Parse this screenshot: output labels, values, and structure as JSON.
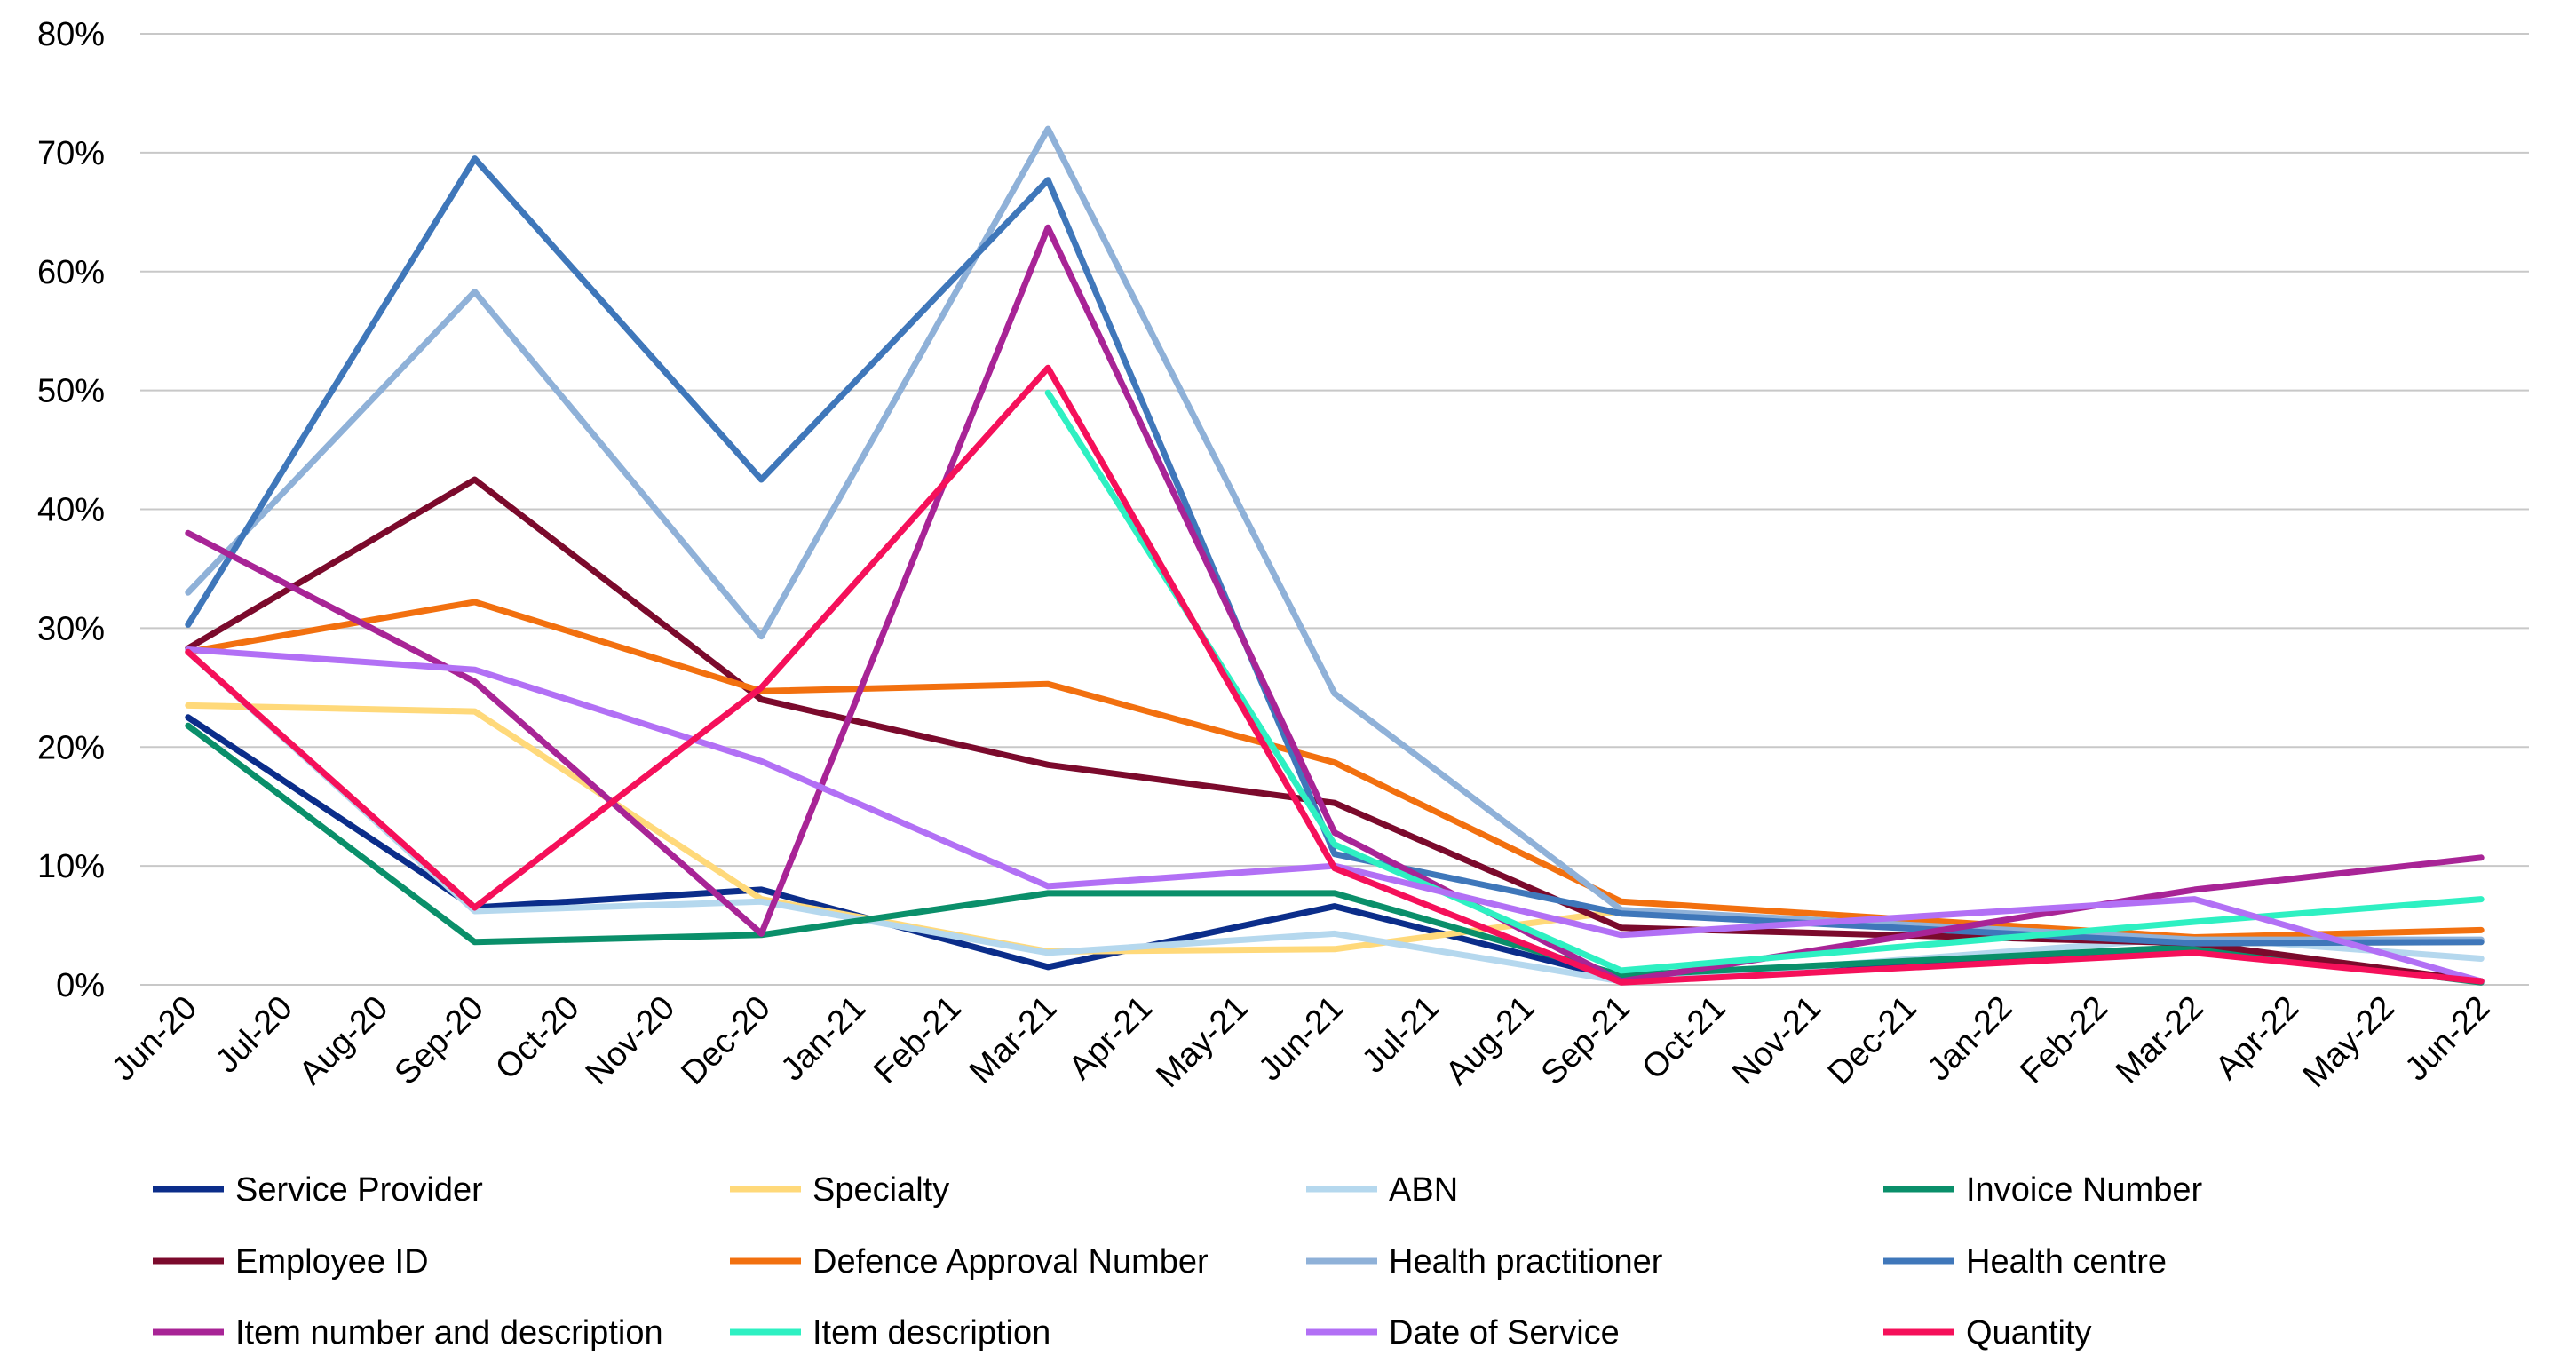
{
  "chart_data": {
    "type": "line",
    "title": "",
    "xlabel": "",
    "ylabel": "",
    "ylim": [
      0,
      80
    ],
    "yticks": [
      "0%",
      "10%",
      "20%",
      "30%",
      "40%",
      "50%",
      "60%",
      "70%",
      "80%"
    ],
    "grid": true,
    "legend_position": "bottom",
    "categories": [
      "Jun-20",
      "Jul-20",
      "Aug-20",
      "Sep-20",
      "Oct-20",
      "Nov-20",
      "Dec-20",
      "Jan-21",
      "Feb-21",
      "Mar-21",
      "Apr-21",
      "May-21",
      "Jun-21",
      "Jul-21",
      "Aug-21",
      "Sep-21",
      "Oct-21",
      "Nov-21",
      "Dec-21",
      "Jan-22",
      "Feb-22",
      "Mar-22",
      "Apr-22",
      "May-22",
      "Jun-22"
    ],
    "series": [
      {
        "name": "Service Provider",
        "color": "#0b2d8a",
        "points": [
          [
            0,
            22.5
          ],
          [
            3,
            6.5
          ],
          [
            6,
            8
          ],
          [
            9,
            1.5
          ],
          [
            12,
            6.6
          ],
          [
            15,
            0.5
          ],
          [
            21,
            3.2
          ],
          [
            24,
            0.3
          ]
        ]
      },
      {
        "name": "Specialty",
        "color": "#ffd97a",
        "points": [
          [
            0,
            23.5
          ],
          [
            3,
            23
          ],
          [
            6,
            7.2
          ],
          [
            9,
            2.8
          ],
          [
            12,
            3
          ],
          [
            15,
            6.2
          ],
          [
            21,
            3.5
          ],
          [
            24,
            3.6
          ]
        ]
      },
      {
        "name": "ABN",
        "color": "#b5d8ee",
        "points": [
          [
            0,
            28
          ],
          [
            3,
            6.2
          ],
          [
            6,
            7
          ],
          [
            9,
            2.7
          ],
          [
            12,
            4.3
          ],
          [
            15,
            0.3
          ],
          [
            21,
            4
          ],
          [
            24,
            2.2
          ]
        ]
      },
      {
        "name": "Invoice Number",
        "color": "#0a8f6a",
        "points": [
          [
            0,
            21.8
          ],
          [
            3,
            3.6
          ],
          [
            6,
            4.2
          ],
          [
            9,
            7.7
          ],
          [
            12,
            7.7
          ],
          [
            15,
            0.8
          ],
          [
            21,
            3.2
          ],
          [
            24,
            0.2
          ]
        ]
      },
      {
        "name": "Employee ID",
        "color": "#7b0a2c",
        "points": [
          [
            0,
            28.3
          ],
          [
            3,
            42.5
          ],
          [
            6,
            24
          ],
          [
            9,
            18.5
          ],
          [
            12,
            15.3
          ],
          [
            15,
            4.8
          ],
          [
            21,
            3.5
          ],
          [
            24,
            0.3
          ]
        ]
      },
      {
        "name": "Defence Approval Number",
        "color": "#f2700f",
        "points": [
          [
            0,
            28
          ],
          [
            3,
            32.2
          ],
          [
            6,
            24.7
          ],
          [
            9,
            25.3
          ],
          [
            12,
            18.7
          ],
          [
            15,
            7
          ],
          [
            21,
            4
          ],
          [
            24,
            4.6
          ]
        ]
      },
      {
        "name": "Health practitioner",
        "color": "#8fb1d8",
        "points": [
          [
            0,
            33
          ],
          [
            3,
            58.3
          ],
          [
            6,
            29.3
          ],
          [
            9,
            72
          ],
          [
            12,
            24.5
          ],
          [
            15,
            6.3
          ],
          [
            21,
            3.8
          ],
          [
            24,
            3.8
          ]
        ]
      },
      {
        "name": "Health centre",
        "color": "#3f77ba",
        "points": [
          [
            0,
            30.3
          ],
          [
            3,
            69.5
          ],
          [
            6,
            42.5
          ],
          [
            9,
            67.7
          ],
          [
            12,
            11
          ],
          [
            15,
            6
          ],
          [
            21,
            3.5
          ],
          [
            24,
            3.6
          ]
        ]
      },
      {
        "name": "Item number and description",
        "color": "#a82496",
        "points": [
          [
            0,
            38
          ],
          [
            3,
            25.5
          ],
          [
            6,
            4.3
          ],
          [
            9,
            63.7
          ],
          [
            12,
            12.8
          ],
          [
            15,
            0.3
          ],
          [
            21,
            8
          ],
          [
            24,
            10.7
          ]
        ]
      },
      {
        "name": "Item description",
        "color": "#2ef0c2",
        "points": [
          [
            9,
            49.8
          ],
          [
            12,
            11.8
          ],
          [
            15,
            1.2
          ],
          [
            21,
            5.3
          ],
          [
            24,
            7.2
          ]
        ]
      },
      {
        "name": "Date of Service",
        "color": "#b270f5",
        "points": [
          [
            0,
            28.2
          ],
          [
            3,
            26.5
          ],
          [
            6,
            18.8
          ],
          [
            9,
            8.3
          ],
          [
            12,
            10
          ],
          [
            15,
            4.2
          ],
          [
            21,
            7.2
          ],
          [
            24,
            0.3
          ]
        ]
      },
      {
        "name": "Quantity",
        "color": "#f5105a",
        "points": [
          [
            0,
            28
          ],
          [
            3,
            6.5
          ],
          [
            6,
            25
          ],
          [
            9,
            51.9
          ],
          [
            12,
            9.8
          ],
          [
            15,
            0.2
          ],
          [
            21,
            2.7
          ],
          [
            24,
            0.3
          ]
        ]
      }
    ]
  }
}
